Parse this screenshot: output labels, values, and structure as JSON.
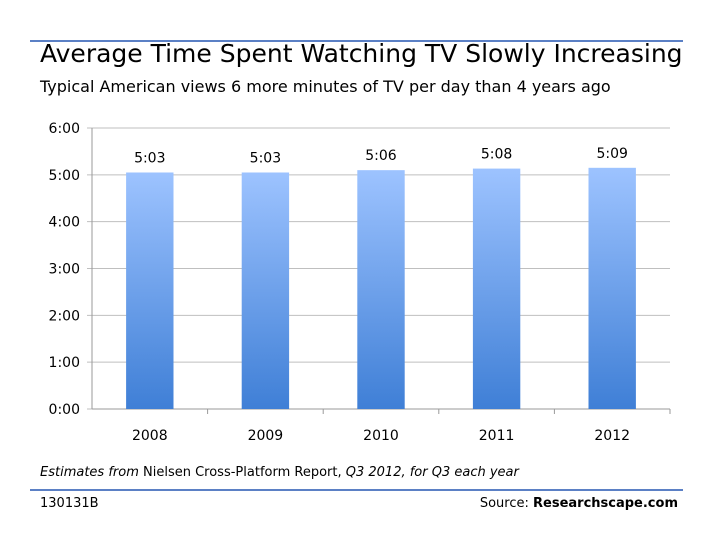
{
  "header": {
    "title": "Average Time Spent Watching TV Slowly Increasing",
    "subtitle": "Typical American views 6 more minutes of TV per day than 4 years ago"
  },
  "chart_data": {
    "type": "bar",
    "categories": [
      "2008",
      "2009",
      "2010",
      "2011",
      "2012"
    ],
    "values": [
      303,
      303,
      306,
      308,
      309
    ],
    "data_labels": [
      "5:03",
      "5:03",
      "5:06",
      "5:08",
      "5:09"
    ],
    "y_unit": "minutes per day (h:mm)",
    "ylim": [
      0,
      360
    ],
    "yticks": [
      0,
      60,
      120,
      180,
      240,
      300,
      360
    ],
    "ytick_labels": [
      "0:00",
      "1:00",
      "2:00",
      "3:00",
      "4:00",
      "5:00",
      "6:00"
    ],
    "grid": true,
    "legend": "none",
    "bar_gradient": [
      "#9dc3ff",
      "#3f7fd6"
    ]
  },
  "footer": {
    "note_italic_1": "Estimates from",
    "note_plain": " Nielsen Cross-Platform Report, ",
    "note_italic_2": "Q3 2012, for Q3 each year",
    "code": "130131B",
    "source_label": "Source: ",
    "source_name": "Researchscape.com"
  },
  "colors": {
    "accent_rule": "#5b80c5",
    "grid": "#bfbfbf"
  }
}
